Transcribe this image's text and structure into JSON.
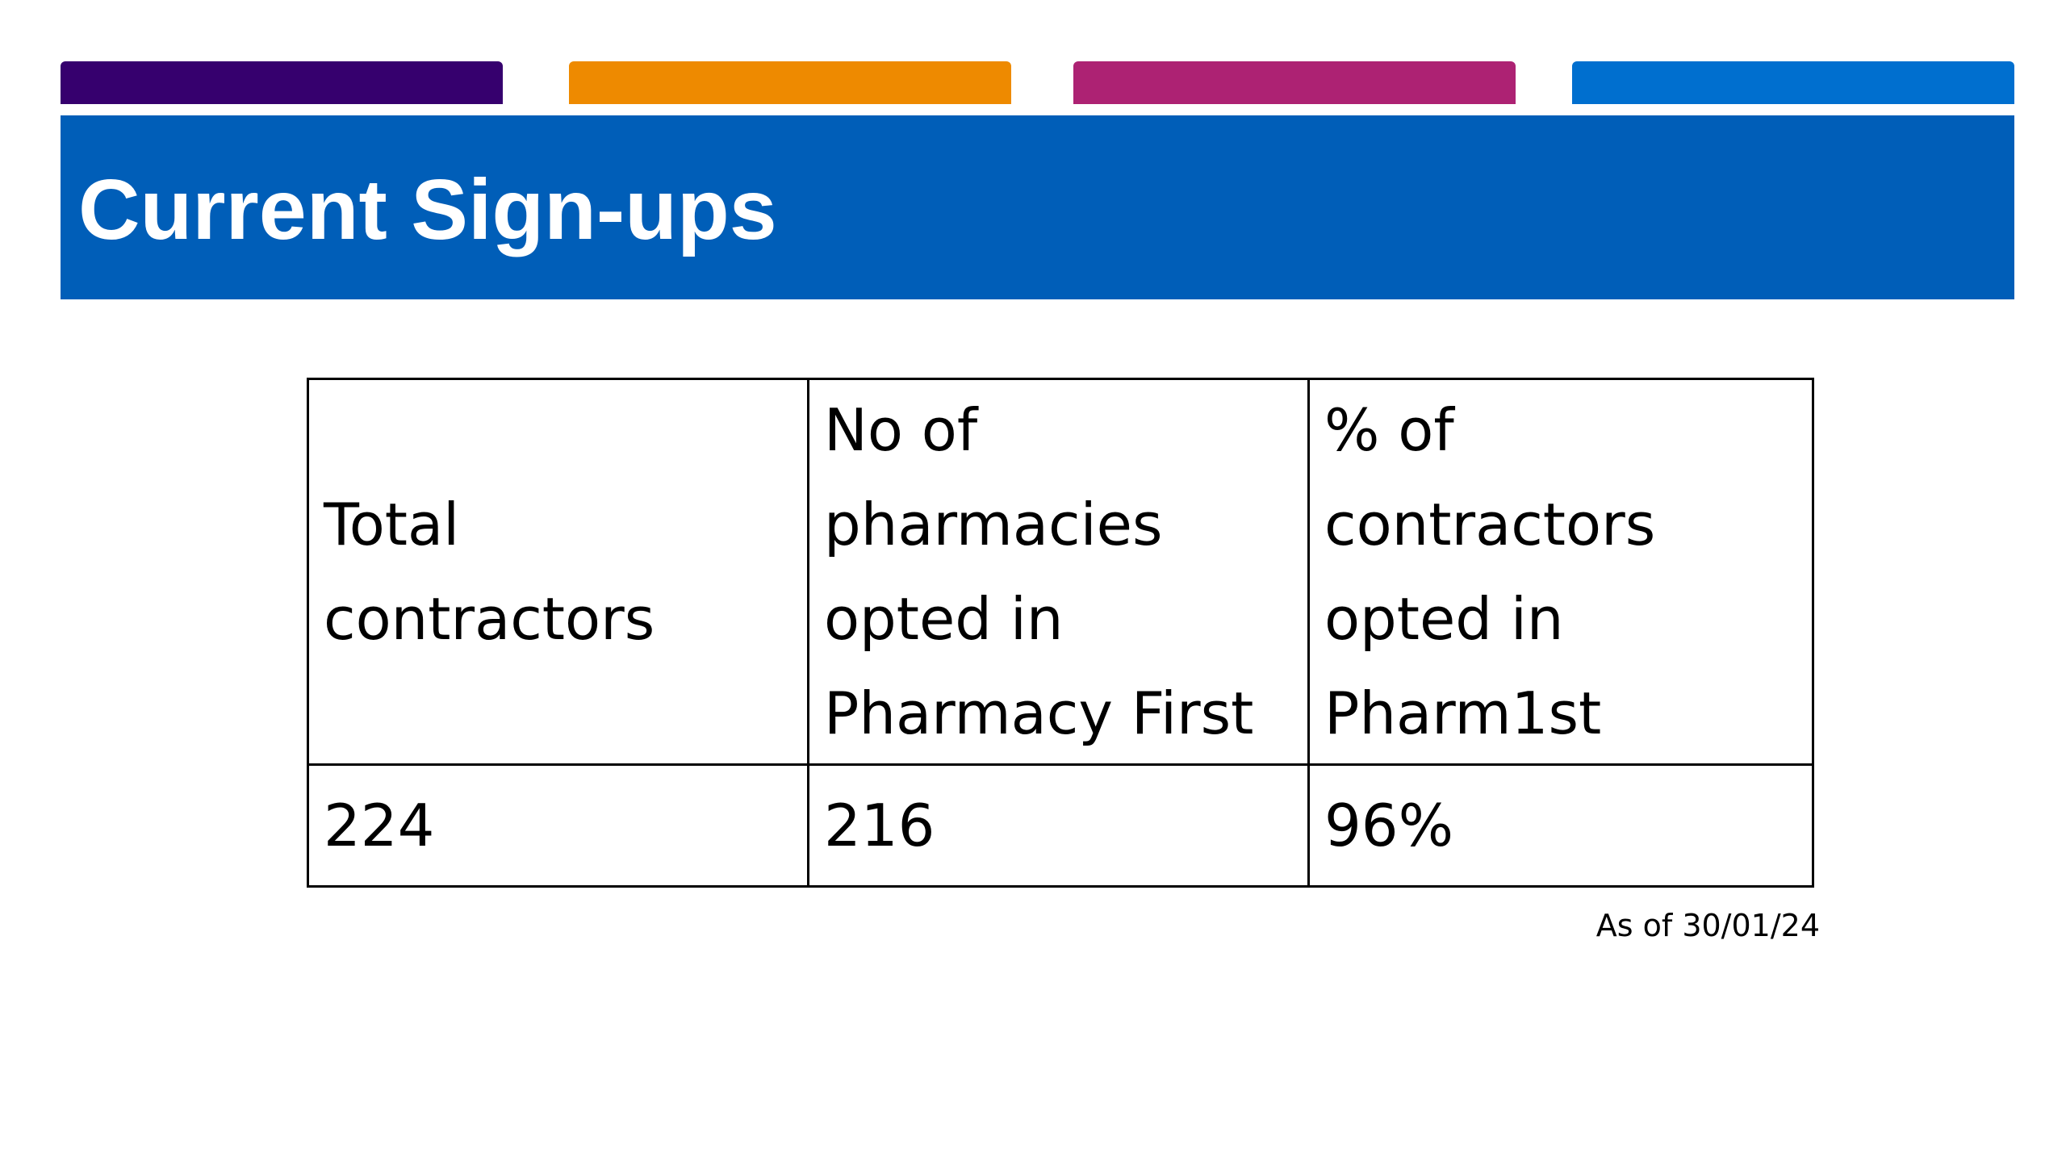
{
  "header": {
    "title": "Current Sign-ups",
    "accent_colors": [
      "#36006e",
      "#ee8a00",
      "#ad2273",
      "#006fcf"
    ],
    "band_color": "#005eb8"
  },
  "table": {
    "headers": [
      "Total contractors",
      "No of pharmacies opted in Pharmacy First",
      "% of contractors opted in Pharm1st"
    ],
    "rows": [
      [
        "224",
        "216",
        "96%"
      ]
    ]
  },
  "footnote": "As of 30/01/24"
}
